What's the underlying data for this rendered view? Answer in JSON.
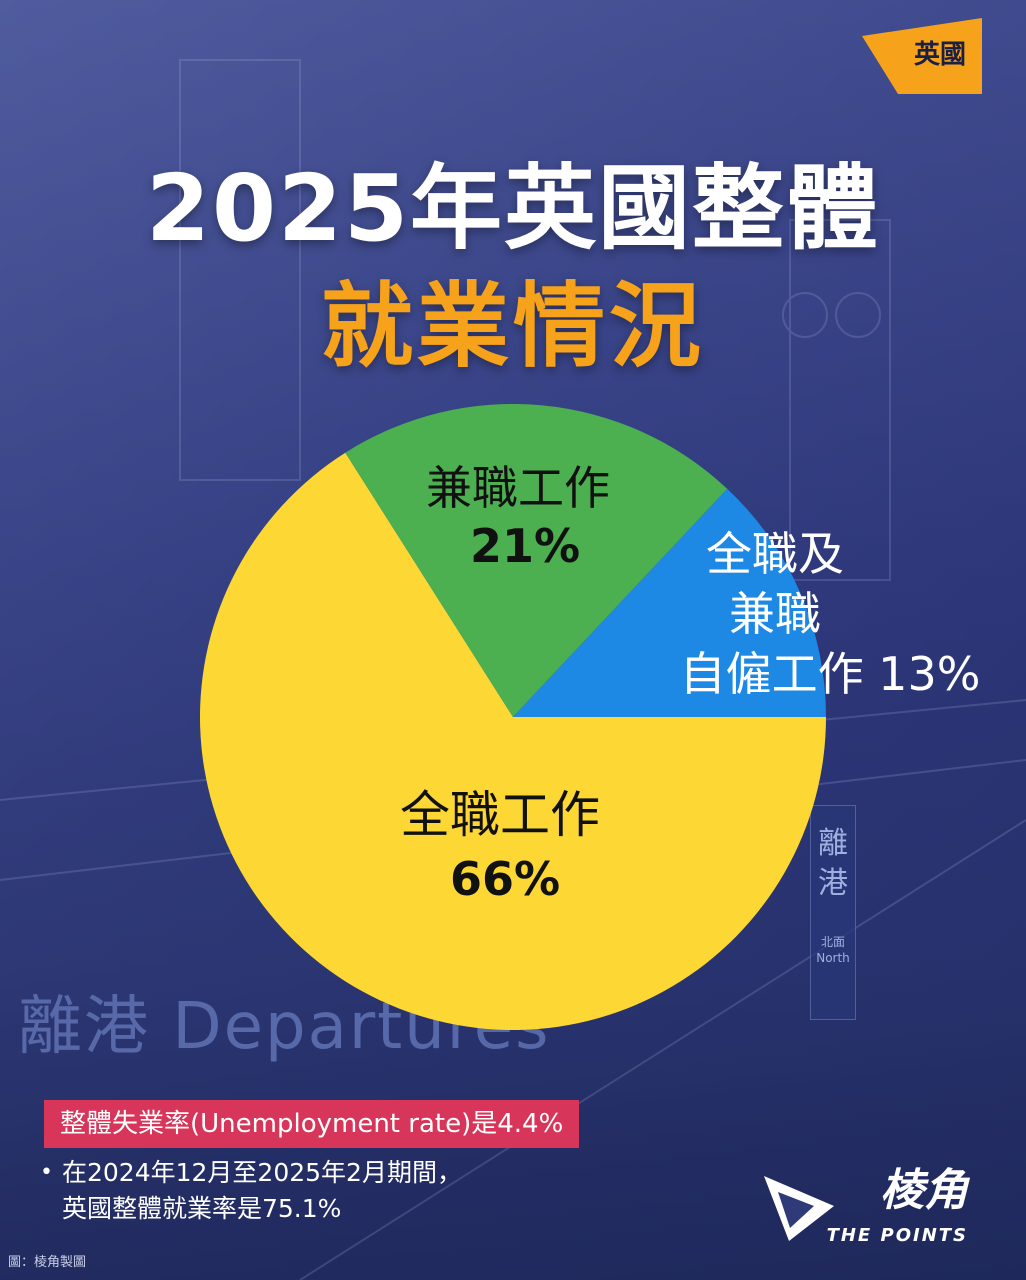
{
  "tag": {
    "label": "英國",
    "color": "#f7a21b"
  },
  "title": {
    "line1": "2025年英國整體",
    "line2": "就業情況"
  },
  "chart_data": {
    "type": "pie",
    "slices": [
      {
        "name": "全職工作",
        "value": 66,
        "label": "66%",
        "color": "#fdd835"
      },
      {
        "name": "兼職工作",
        "value": 21,
        "label": "21%",
        "color": "#4caf50"
      },
      {
        "name": "全職及兼職自僱工作",
        "value": 13,
        "label": "13%",
        "color": "#1e88e5"
      }
    ],
    "slice_text": {
      "fulltime": {
        "line1": "全職工作",
        "line2": "66%"
      },
      "parttime": {
        "line1": "兼職工作",
        "line2": "21%"
      },
      "self": {
        "line1": "全職及",
        "line2": "兼職",
        "line3": "自僱工作 13%"
      }
    }
  },
  "background_signs": {
    "left": "離港 Departures",
    "right_main": "離港",
    "right_small_1": "北面",
    "right_small_2": "North"
  },
  "highlight": "整體失業率(Unemployment rate)是4.4%",
  "note": {
    "line1": "在2024年12月至2025年2月期間，",
    "line2": "英國整體就業率是75.1%"
  },
  "credit": "圖：棱角製圖",
  "logo": {
    "main": "棱角",
    "sub": "THE POINTS"
  }
}
